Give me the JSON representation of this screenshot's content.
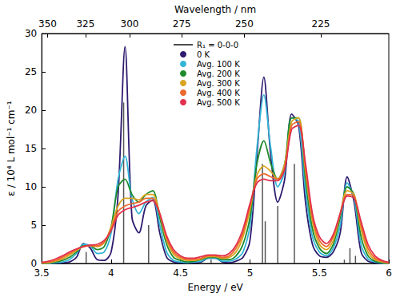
{
  "chart_data": {
    "type": "line",
    "x_label": "Energy / eV",
    "y_label": "ε / 10⁴ L mol⁻¹ cm⁻¹",
    "x2_label": "Wavelength / nm",
    "xlim": [
      3.5,
      6
    ],
    "xticks": [
      3.5,
      4,
      4.5,
      5,
      5.5,
      6
    ],
    "x2lim": [
      3.5,
      6
    ],
    "x2ticks": [
      {
        "value": 3.542,
        "label": "350"
      },
      {
        "value": 3.815,
        "label": "325"
      },
      {
        "value": 4.133,
        "label": "300"
      },
      {
        "value": 4.509,
        "label": "275"
      },
      {
        "value": 4.959,
        "label": "250"
      },
      {
        "value": 5.51,
        "label": "225"
      }
    ],
    "ylim": [
      0,
      30
    ],
    "yticks": [
      0,
      5,
      10,
      15,
      20,
      25,
      30
    ],
    "grid": false,
    "legend": "top",
    "x": [
      3.5,
      3.55,
      3.6,
      3.65,
      3.7,
      3.75,
      3.8,
      3.85,
      3.9,
      3.95,
      4.0,
      4.05,
      4.1,
      4.15,
      4.2,
      4.25,
      4.3,
      4.35,
      4.4,
      4.45,
      4.5,
      4.55,
      4.6,
      4.65,
      4.7,
      4.75,
      4.8,
      4.85,
      4.9,
      4.95,
      5.0,
      5.05,
      5.1,
      5.15,
      5.2,
      5.25,
      5.3,
      5.35,
      5.4,
      5.45,
      5.5,
      5.55,
      5.6,
      5.65,
      5.7,
      5.75,
      5.8,
      5.85,
      5.9,
      5.95,
      6.0
    ],
    "series": [
      {
        "name": "R₁ = 0-0-0",
        "type": "stick",
        "color": "#555555",
        "x": [
          3.82,
          4.09,
          4.27,
          4.72,
          5.09,
          5.11,
          5.2,
          5.32,
          5.68,
          5.72,
          5.76
        ],
        "values": [
          1.5,
          21,
          5,
          0.5,
          13,
          5.5,
          7.5,
          13,
          0.5,
          2,
          1
        ]
      },
      {
        "name": "0 K",
        "type": "line",
        "color": "#2e1a6e",
        "values": [
          0,
          0,
          0.05,
          0.1,
          0.2,
          0.8,
          2.6,
          2.0,
          0.5,
          0.4,
          1.5,
          9,
          28.3,
          6,
          4,
          7.5,
          8.3,
          4,
          0.8,
          0.2,
          0.1,
          0.1,
          0.1,
          0.2,
          0.7,
          0.7,
          0.2,
          0.1,
          0.3,
          0.8,
          3,
          14,
          24.3,
          14,
          8,
          11,
          19.5,
          18,
          8,
          2.5,
          1,
          0.8,
          1.5,
          4,
          11.3,
          8,
          1.5,
          0.3,
          0.1,
          0,
          0
        ]
      },
      {
        "name": "Avg. 100 K",
        "type": "line",
        "color": "#33b5d6",
        "values": [
          0,
          0,
          0.1,
          0.2,
          0.5,
          1.3,
          2.5,
          2.3,
          1.3,
          1.5,
          4,
          11,
          14,
          8.5,
          6.5,
          8,
          8.6,
          5,
          1.5,
          0.4,
          0.2,
          0.1,
          0.2,
          0.3,
          0.7,
          0.7,
          0.3,
          0.3,
          0.6,
          1.5,
          5,
          15,
          22,
          15,
          10,
          12,
          19,
          18.5,
          9.5,
          3.5,
          1.5,
          1,
          2,
          5,
          10.5,
          8.5,
          2.5,
          0.6,
          0.2,
          0.05,
          0
        ]
      },
      {
        "name": "Avg. 200 K",
        "type": "line",
        "color": "#1f8a2c",
        "values": [
          0,
          0.05,
          0.2,
          0.4,
          0.8,
          1.5,
          2.3,
          2.3,
          1.8,
          2.2,
          4.8,
          10,
          11,
          9,
          8,
          9,
          9.5,
          6,
          2.5,
          0.8,
          0.4,
          0.2,
          0.3,
          0.5,
          0.8,
          0.8,
          0.5,
          0.5,
          1,
          2.5,
          6,
          13,
          16,
          13,
          11,
          13,
          19,
          19,
          11,
          4.5,
          2,
          1.3,
          2.5,
          6,
          10,
          9,
          3.5,
          1,
          0.3,
          0.1,
          0
        ]
      },
      {
        "name": "Avg. 300 K",
        "type": "line",
        "color": "#d9a521",
        "values": [
          0.05,
          0.1,
          0.3,
          0.6,
          1.1,
          1.7,
          2.2,
          2.3,
          2.2,
          2.7,
          4.8,
          7.5,
          8.5,
          8.5,
          8.3,
          9,
          9,
          6.5,
          3,
          1.2,
          0.6,
          0.4,
          0.4,
          0.6,
          0.9,
          0.9,
          0.7,
          0.8,
          1.5,
          3.5,
          7,
          11.5,
          12.7,
          12,
          11,
          13,
          18.5,
          19,
          12,
          5.5,
          2.5,
          1.8,
          3,
          6.5,
          9.5,
          9,
          4.5,
          1.5,
          0.5,
          0.2,
          0.05
        ]
      },
      {
        "name": "Avg. 400 K",
        "type": "line",
        "color": "#ec6a2b",
        "values": [
          0.1,
          0.2,
          0.4,
          0.8,
          1.3,
          1.8,
          2.2,
          2.3,
          2.3,
          2.8,
          4.5,
          6.8,
          7.5,
          7.8,
          8,
          8.5,
          8.5,
          6.5,
          3.3,
          1.5,
          0.8,
          0.5,
          0.5,
          0.7,
          1,
          1,
          0.8,
          1,
          2,
          4,
          7.5,
          11,
          11.7,
          11.3,
          11,
          12.5,
          18,
          18.5,
          12.5,
          6,
          3,
          2.2,
          3.5,
          6.5,
          9,
          8.8,
          5,
          2,
          0.7,
          0.3,
          0.1
        ]
      },
      {
        "name": "Avg. 500 K",
        "type": "line",
        "color": "#e2304c",
        "values": [
          0.15,
          0.3,
          0.6,
          1,
          1.5,
          1.9,
          2.2,
          2.4,
          2.5,
          3,
          4.3,
          6.3,
          7,
          7.3,
          7.6,
          8,
          8.2,
          6.5,
          3.6,
          1.8,
          1,
          0.7,
          0.7,
          0.9,
          1.1,
          1.1,
          1,
          1.3,
          2.4,
          4.5,
          7.8,
          10.5,
          11,
          10.8,
          10.8,
          12.3,
          17.5,
          18,
          13,
          6.5,
          3.5,
          2.6,
          3.8,
          6.5,
          8.8,
          8.5,
          5.5,
          2.5,
          1,
          0.4,
          0.15
        ]
      }
    ]
  }
}
